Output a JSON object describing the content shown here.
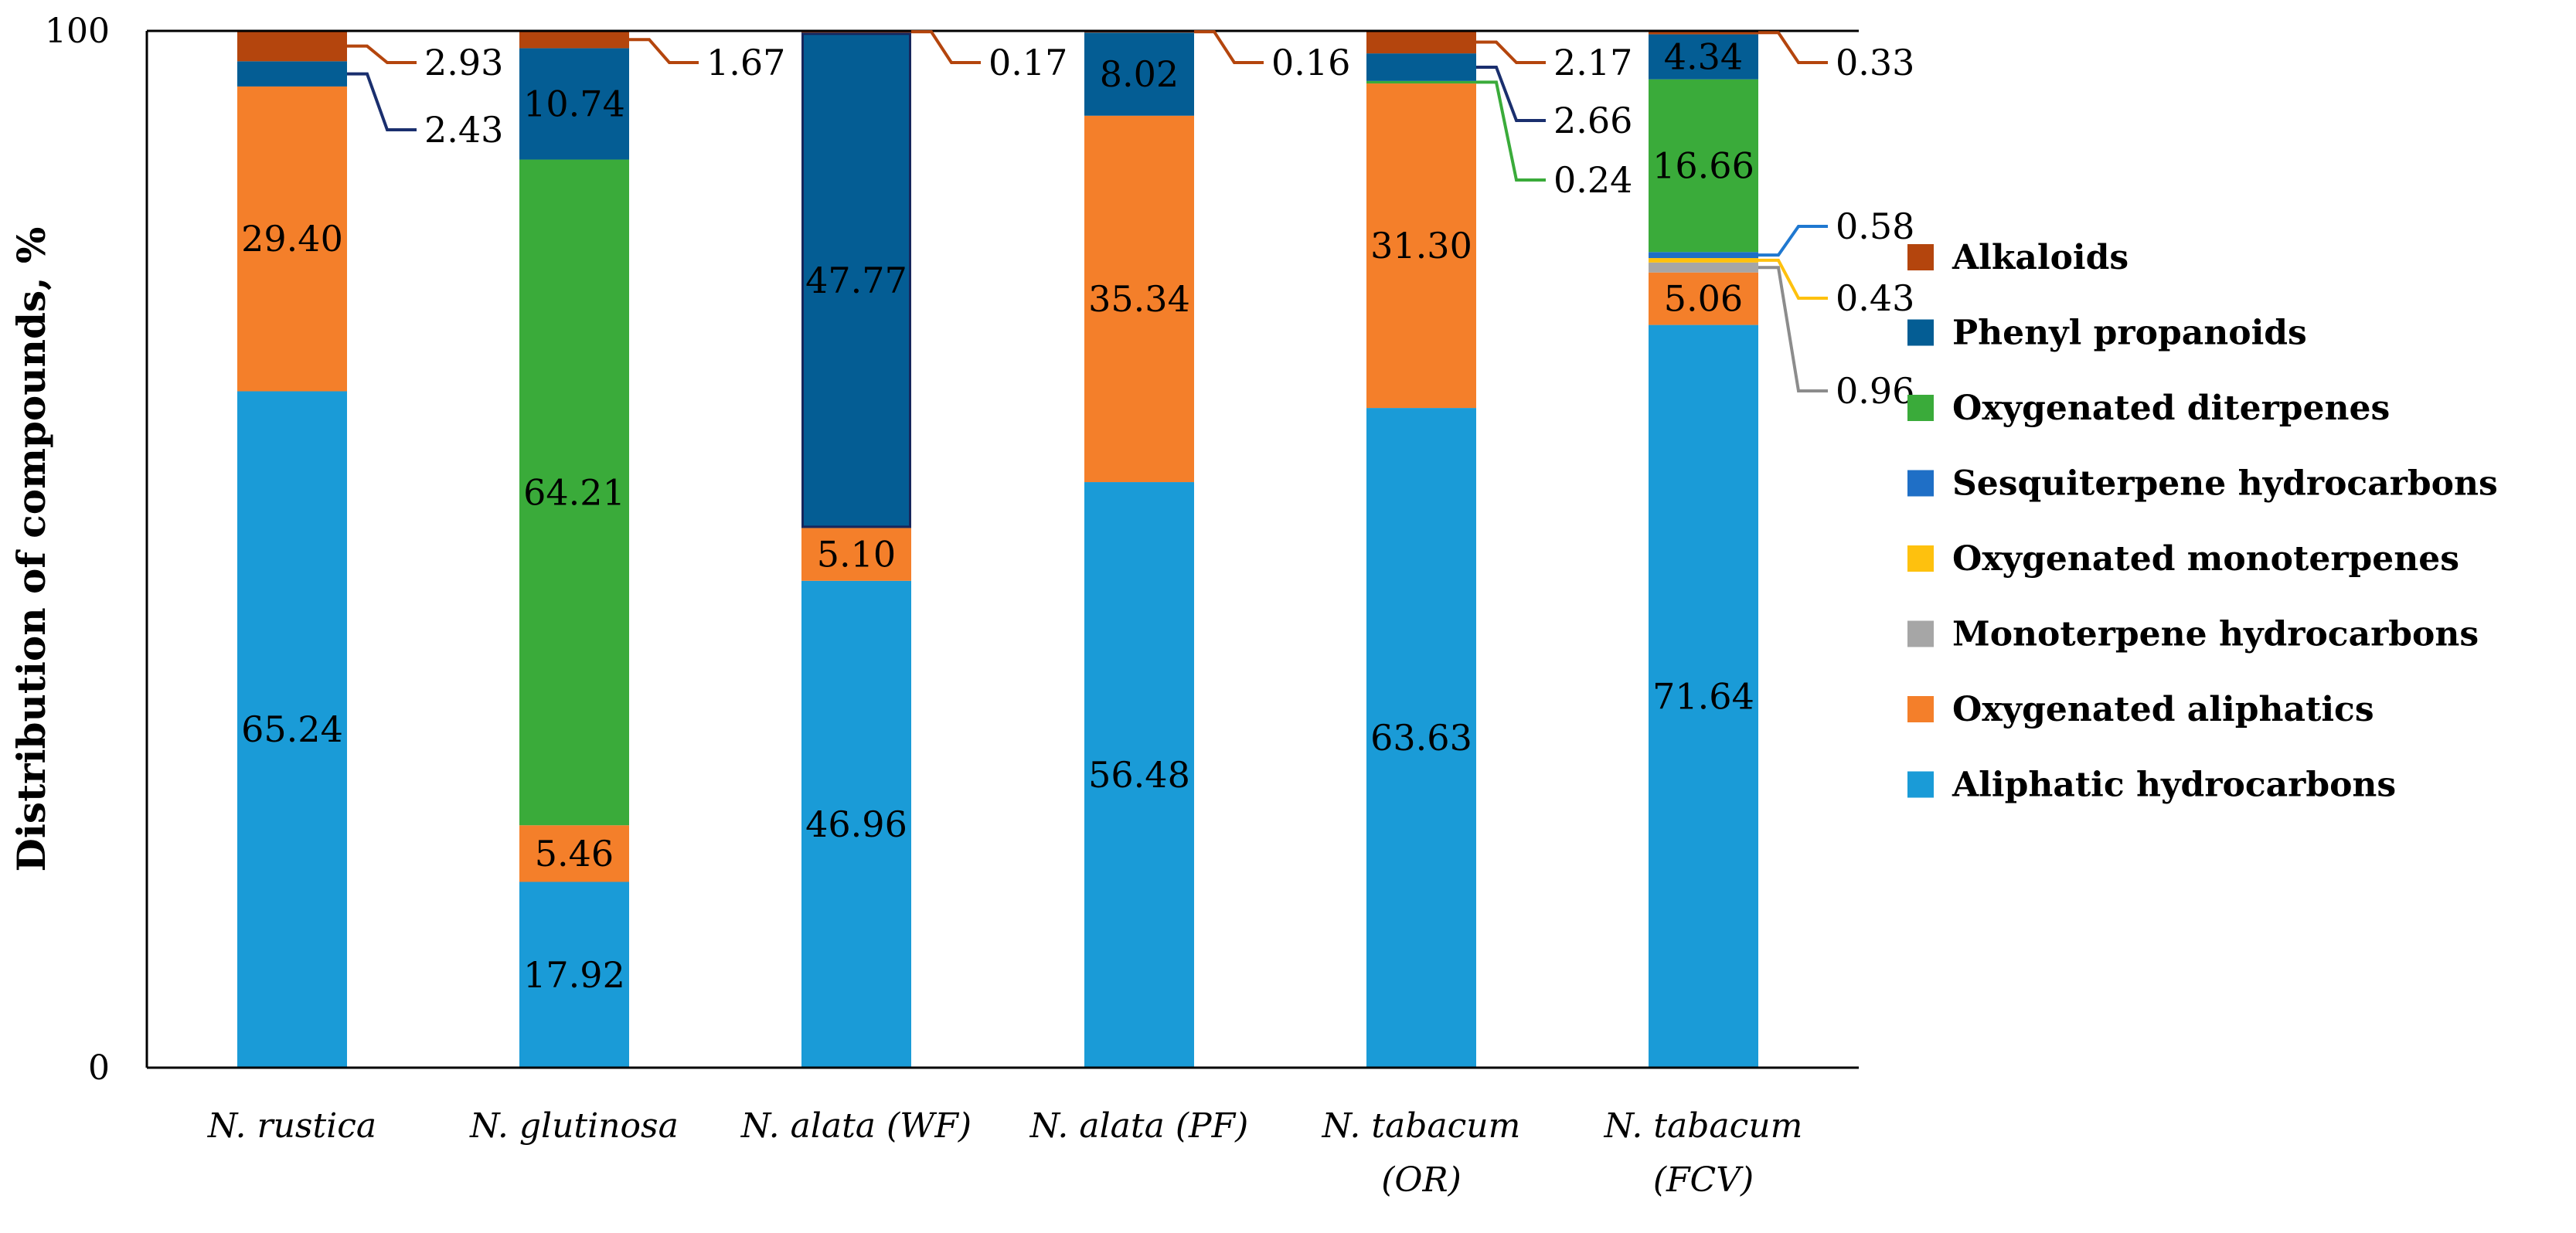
{
  "chart_data": {
    "type": "bar",
    "stacked": true,
    "title": "",
    "xlabel": "",
    "ylabel": "Distribution of compounds, %",
    "ylim": [
      0,
      100
    ],
    "y_ticks": [
      "0",
      "100"
    ],
    "categories": [
      [
        "N. rustica"
      ],
      [
        "N. glutinosa"
      ],
      [
        "N. alata (WF)"
      ],
      [
        "N. alata (PF)"
      ],
      [
        "N. tabacum",
        "(OR)"
      ],
      [
        "N. tabacum",
        "(FCV)"
      ]
    ],
    "series": [
      {
        "name": "Aliphatic hydrocarbons",
        "color": "#1a9bd7",
        "values": [
          65.24,
          17.92,
          46.96,
          56.48,
          63.63,
          71.64
        ]
      },
      {
        "name": "Oxygenated aliphatics",
        "color": "#f47f2a",
        "values": [
          29.4,
          5.46,
          5.1,
          35.34,
          31.3,
          5.06
        ]
      },
      {
        "name": "Monoterpene hydrocarbons",
        "color": "#a6a6a6",
        "values": [
          0,
          0,
          0,
          0,
          0,
          0.96
        ]
      },
      {
        "name": "Oxygenated monoterpenes",
        "color": "#fec10e",
        "values": [
          0,
          0,
          0,
          0,
          0,
          0.43
        ]
      },
      {
        "name": "Sesquiterpene hydrocarbons",
        "color": "#1f6fc6",
        "values": [
          0,
          0,
          0,
          0,
          0,
          0.58
        ]
      },
      {
        "name": "Oxygenated diterpenes",
        "color": "#3aab3a",
        "values": [
          0,
          64.21,
          0,
          0,
          0.24,
          16.66
        ]
      },
      {
        "name": "Phenyl propanoids",
        "color": "#045d94",
        "values": [
          2.43,
          10.74,
          47.77,
          8.02,
          2.66,
          4.34
        ]
      },
      {
        "name": "Alkaloids",
        "color": "#b4450d",
        "values": [
          2.93,
          1.67,
          0.17,
          0.16,
          2.17,
          0.33
        ]
      }
    ],
    "segment_labels": [
      {
        "category": 0,
        "series": 0,
        "text": "65.24"
      },
      {
        "category": 0,
        "series": 1,
        "text": "29.40"
      },
      {
        "category": 1,
        "series": 0,
        "text": "17.92"
      },
      {
        "category": 1,
        "series": 1,
        "text": "5.46"
      },
      {
        "category": 1,
        "series": 5,
        "text": "64.21"
      },
      {
        "category": 1,
        "series": 6,
        "text": "10.74"
      },
      {
        "category": 2,
        "series": 0,
        "text": "46.96"
      },
      {
        "category": 2,
        "series": 1,
        "text": "5.10"
      },
      {
        "category": 2,
        "series": 6,
        "text": "47.77"
      },
      {
        "category": 3,
        "series": 0,
        "text": "56.48"
      },
      {
        "category": 3,
        "series": 1,
        "text": "35.34"
      },
      {
        "category": 3,
        "series": 6,
        "text": "8.02"
      },
      {
        "category": 4,
        "series": 0,
        "text": "63.63"
      },
      {
        "category": 4,
        "series": 1,
        "text": "31.30"
      },
      {
        "category": 5,
        "series": 0,
        "text": "71.64"
      },
      {
        "category": 5,
        "series": 1,
        "text": "5.06"
      },
      {
        "category": 5,
        "series": 5,
        "text": "16.66"
      },
      {
        "category": 5,
        "series": 6,
        "text": "4.34"
      }
    ],
    "callouts": [
      {
        "category": 0,
        "series": 7,
        "text": "2.93",
        "color": "#b4450d"
      },
      {
        "category": 0,
        "series": 6,
        "text": "2.43",
        "color": "#1a2f6e"
      },
      {
        "category": 1,
        "series": 7,
        "text": "1.67",
        "color": "#b4450d"
      },
      {
        "category": 2,
        "series": 7,
        "text": "0.17",
        "color": "#b4450d"
      },
      {
        "category": 3,
        "series": 7,
        "text": "0.16",
        "color": "#b4450d"
      },
      {
        "category": 4,
        "series": 7,
        "text": "2.17",
        "color": "#b4450d"
      },
      {
        "category": 4,
        "series": 6,
        "text": "2.66",
        "color": "#1a2f6e"
      },
      {
        "category": 4,
        "series": 5,
        "text": "0.24",
        "color": "#3aab3a"
      },
      {
        "category": 5,
        "series": 7,
        "text": "0.33",
        "color": "#b4450d"
      },
      {
        "category": 5,
        "series": 4,
        "text": "0.58",
        "color": "#1f78d0"
      },
      {
        "category": 5,
        "series": 3,
        "text": "0.43",
        "color": "#fec10e"
      },
      {
        "category": 5,
        "series": 2,
        "text": "0.96",
        "color": "#8c8c8c"
      }
    ],
    "legend": {
      "position": "right",
      "order": [
        "Alkaloids",
        "Phenyl propanoids",
        "Oxygenated diterpenes",
        "Sesquiterpene hydrocarbons",
        "Oxygenated monoterpenes",
        "Monoterpene hydrocarbons",
        "Oxygenated aliphatics",
        "Aliphatic hydrocarbons"
      ]
    }
  }
}
